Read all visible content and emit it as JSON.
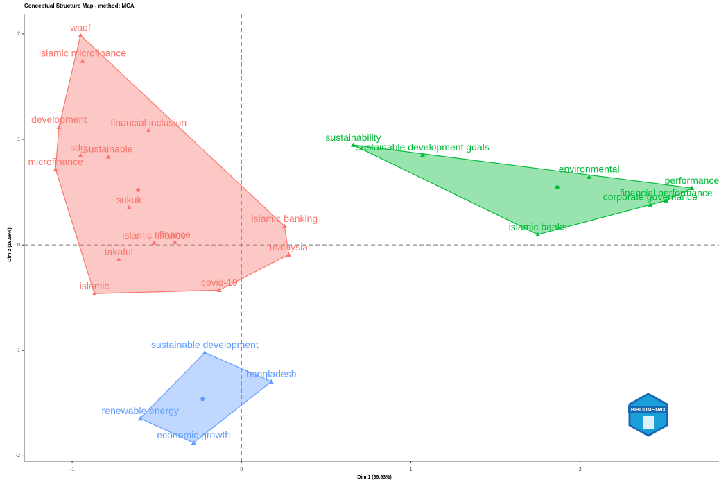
{
  "chart_data": {
    "type": "scatter",
    "title": "Conceptual Structure Map - method: MCA",
    "xlabel": "Dim 1 (39.93%)",
    "ylabel": "Dim 2 (16.58%)",
    "xlim": [
      -1.283,
      2.82
    ],
    "ylim": [
      -2.05,
      2.19
    ],
    "xticks": [
      -1,
      0,
      1,
      2
    ],
    "yticks": [
      -2,
      -1,
      0,
      1,
      2
    ],
    "logo": "BIBLIOMETRIX",
    "clusters": [
      {
        "color": "#F8766D",
        "labels": [
          "waqf",
          "islamic microfinance",
          "financial inclusion",
          "development",
          "sdgs",
          "sustainable",
          "microfinance",
          "sukuk",
          "islamic banking",
          "finance",
          "islamic finance",
          "malaysia",
          "takaful",
          "covid-19",
          "islamic"
        ],
        "x": [
          -0.951,
          -0.939,
          -0.549,
          -1.078,
          -0.951,
          -0.787,
          -1.098,
          -0.664,
          0.254,
          -0.393,
          -0.516,
          0.279,
          -0.725,
          -0.131,
          -0.869
        ],
        "y": [
          1.987,
          1.743,
          1.086,
          1.118,
          0.849,
          0.836,
          0.717,
          0.355,
          0.178,
          0.026,
          0.02,
          -0.092,
          -0.138,
          -0.428,
          -0.461
        ],
        "centroid": [
          -0.611,
          0.52
        ]
      },
      {
        "color": "#00BA38",
        "labels": [
          "sustainability",
          "sustainable development goals",
          "environmental",
          "performance",
          "financial performance",
          "corporate governance",
          "islamic banks"
        ],
        "x": [
          0.66,
          1.07,
          2.053,
          2.66,
          2.508,
          2.414,
          1.75
        ],
        "y": [
          0.947,
          0.855,
          0.645,
          0.539,
          0.421,
          0.382,
          0.099
        ],
        "centroid": [
          1.865,
          0.546
        ]
      },
      {
        "color": "#619CFF",
        "labels": [
          "sustainable development",
          "bangladesh",
          "renewable energy",
          "economic growth"
        ],
        "x": [
          -0.217,
          0.176,
          -0.598,
          -0.283
        ],
        "y": [
          -1.02,
          -1.296,
          -1.645,
          -1.875
        ],
        "centroid": [
          -0.23,
          -1.461
        ]
      }
    ]
  }
}
